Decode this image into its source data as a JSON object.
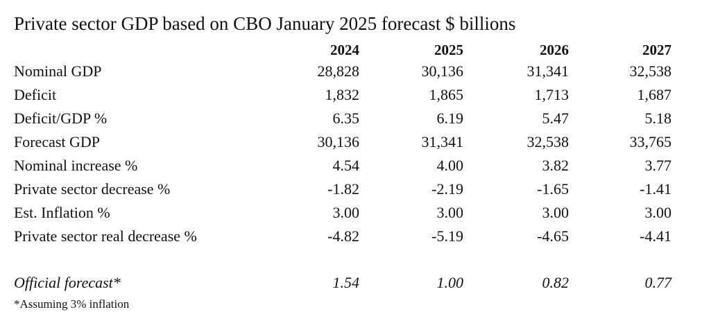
{
  "title": "Private sector GDP based on CBO January 2025 forecast $ billions",
  "columns": [
    "2024",
    "2025",
    "2026",
    "2027"
  ],
  "rows": [
    {
      "label": "Nominal GDP",
      "values": [
        "28,828",
        "30,136",
        "31,341",
        "32,538"
      ]
    },
    {
      "label": "Deficit",
      "values": [
        "1,832",
        "1,865",
        "1,713",
        "1,687"
      ]
    },
    {
      "label": "Deficit/GDP %",
      "values": [
        "6.35",
        "6.19",
        "5.47",
        "5.18"
      ]
    },
    {
      "label": "Forecast GDP",
      "values": [
        "30,136",
        "31,341",
        "32,538",
        "33,765"
      ]
    },
    {
      "label": "Nominal increase %",
      "values": [
        "4.54",
        "4.00",
        "3.82",
        "3.77"
      ]
    },
    {
      "label": "Private sector decrease %",
      "values": [
        "-1.82",
        "-2.19",
        "-1.65",
        "-1.41"
      ]
    },
    {
      "label": "Est. Inflation %",
      "values": [
        "3.00",
        "3.00",
        "3.00",
        "3.00"
      ]
    },
    {
      "label": "Private sector real decrease %",
      "values": [
        "-4.82",
        "-5.19",
        "-4.65",
        "-4.41"
      ]
    }
  ],
  "official": {
    "label": "Official forecast*",
    "values": [
      "1.54",
      "1.00",
      "0.82",
      "0.77"
    ]
  },
  "footnote": "*Assuming 3% inflation"
}
